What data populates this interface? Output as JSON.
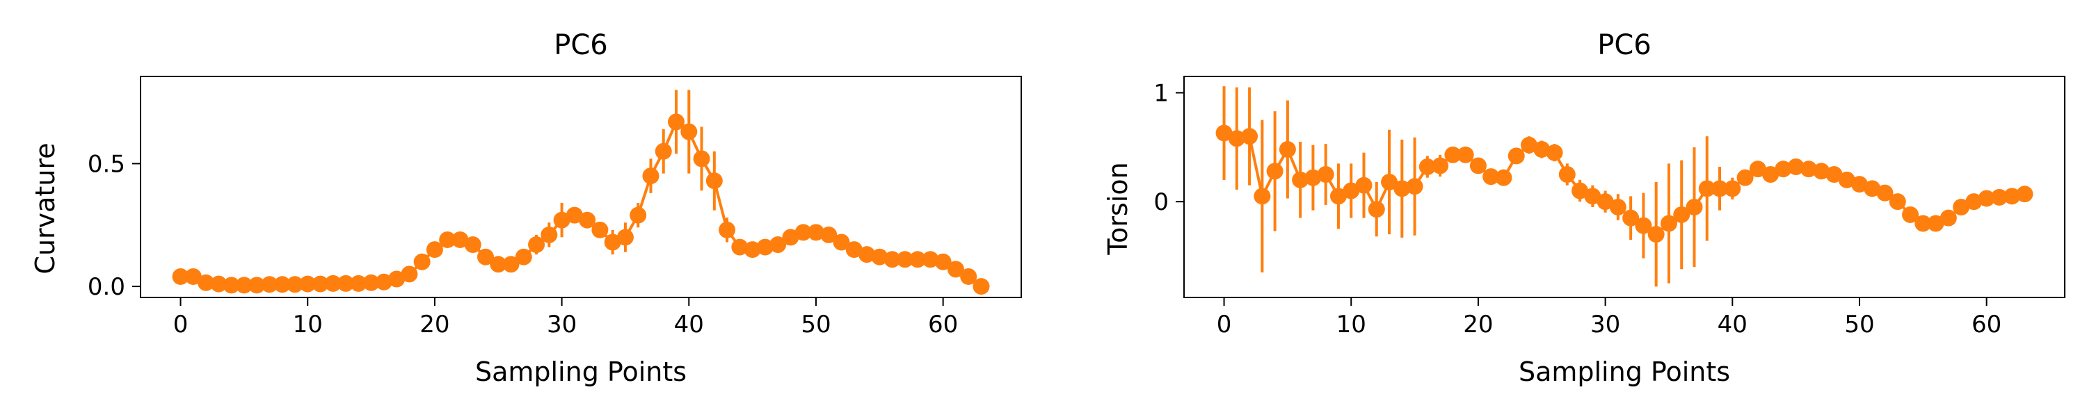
{
  "chart_data": [
    {
      "type": "line",
      "title": "PC6",
      "xlabel": "Sampling Points",
      "ylabel": "Curvature",
      "xlim": [
        -3.15,
        66.15
      ],
      "ylim": [
        -0.045,
        0.855
      ],
      "xticks": [
        0,
        10,
        20,
        30,
        40,
        50,
        60
      ],
      "xtick_labels": [
        "0",
        "10",
        "20",
        "30",
        "40",
        "50",
        "60"
      ],
      "yticks": [
        0.0,
        0.5
      ],
      "ytick_labels": [
        "0.0",
        "0.5"
      ],
      "grid": false,
      "legend": "none",
      "series": [
        {
          "color": "#ff7f0e",
          "x": [
            0,
            1,
            2,
            3,
            4,
            5,
            6,
            7,
            8,
            9,
            10,
            11,
            12,
            13,
            14,
            15,
            16,
            17,
            18,
            19,
            20,
            21,
            22,
            23,
            24,
            25,
            26,
            27,
            28,
            29,
            30,
            31,
            32,
            33,
            34,
            35,
            36,
            37,
            38,
            39,
            40,
            41,
            42,
            43,
            44,
            45,
            46,
            47,
            48,
            49,
            50,
            51,
            52,
            53,
            54,
            55,
            56,
            57,
            58,
            59,
            60,
            61,
            62,
            63
          ],
          "y": [
            0.04,
            0.04,
            0.015,
            0.01,
            0.005,
            0.005,
            0.005,
            0.008,
            0.008,
            0.008,
            0.01,
            0.01,
            0.012,
            0.012,
            0.012,
            0.015,
            0.018,
            0.03,
            0.05,
            0.1,
            0.15,
            0.19,
            0.19,
            0.17,
            0.12,
            0.09,
            0.09,
            0.12,
            0.17,
            0.21,
            0.27,
            0.29,
            0.27,
            0.23,
            0.18,
            0.2,
            0.29,
            0.45,
            0.55,
            0.67,
            0.63,
            0.52,
            0.43,
            0.23,
            0.16,
            0.15,
            0.16,
            0.17,
            0.2,
            0.22,
            0.22,
            0.21,
            0.18,
            0.15,
            0.13,
            0.12,
            0.11,
            0.11,
            0.11,
            0.11,
            0.1,
            0.07,
            0.04,
            0.0
          ],
          "err": [
            0.01,
            0.01,
            0.01,
            0.008,
            0.005,
            0.005,
            0.005,
            0.005,
            0.005,
            0.005,
            0.005,
            0.005,
            0.005,
            0.005,
            0.005,
            0.005,
            0.005,
            0.01,
            0.015,
            0.02,
            0.02,
            0.02,
            0.02,
            0.02,
            0.02,
            0.02,
            0.02,
            0.03,
            0.04,
            0.05,
            0.07,
            0.02,
            0.02,
            0.03,
            0.05,
            0.06,
            0.05,
            0.07,
            0.09,
            0.13,
            0.17,
            0.13,
            0.12,
            0.05,
            0.02,
            0.02,
            0.02,
            0.02,
            0.02,
            0.02,
            0.02,
            0.02,
            0.02,
            0.02,
            0.02,
            0.02,
            0.01,
            0.01,
            0.01,
            0.01,
            0.01,
            0.01,
            0.01,
            0.01
          ]
        }
      ]
    },
    {
      "type": "line",
      "title": "PC6",
      "xlabel": "Sampling Points",
      "ylabel": "Torsion",
      "xlim": [
        -3.15,
        66.15
      ],
      "ylim": [
        -0.88,
        1.15
      ],
      "xticks": [
        0,
        10,
        20,
        30,
        40,
        50,
        60
      ],
      "xtick_labels": [
        "0",
        "10",
        "20",
        "30",
        "40",
        "50",
        "60"
      ],
      "yticks": [
        0,
        1
      ],
      "ytick_labels": [
        "0",
        "1"
      ],
      "grid": false,
      "legend": "none",
      "series": [
        {
          "color": "#ff7f0e",
          "x": [
            0,
            1,
            2,
            3,
            4,
            5,
            6,
            7,
            8,
            9,
            10,
            11,
            12,
            13,
            14,
            15,
            16,
            17,
            18,
            19,
            20,
            21,
            22,
            23,
            24,
            25,
            26,
            27,
            28,
            29,
            30,
            31,
            32,
            33,
            34,
            35,
            36,
            37,
            38,
            39,
            40,
            41,
            42,
            43,
            44,
            45,
            46,
            47,
            48,
            49,
            50,
            51,
            52,
            53,
            54,
            55,
            56,
            57,
            58,
            59,
            60,
            61,
            62,
            63
          ],
          "y": [
            0.63,
            0.58,
            0.6,
            0.05,
            0.28,
            0.48,
            0.2,
            0.22,
            0.25,
            0.05,
            0.1,
            0.15,
            -0.07,
            0.18,
            0.12,
            0.14,
            0.32,
            0.33,
            0.43,
            0.43,
            0.33,
            0.23,
            0.22,
            0.42,
            0.52,
            0.48,
            0.45,
            0.25,
            0.1,
            0.05,
            0.0,
            -0.05,
            -0.15,
            -0.22,
            -0.3,
            -0.2,
            -0.12,
            -0.05,
            0.12,
            0.12,
            0.12,
            0.22,
            0.3,
            0.25,
            0.3,
            0.32,
            0.3,
            0.28,
            0.25,
            0.2,
            0.16,
            0.12,
            0.08,
            0.0,
            -0.12,
            -0.2,
            -0.2,
            -0.15,
            -0.05,
            0.0,
            0.03,
            0.04,
            0.05,
            0.07
          ],
          "err": [
            0.43,
            0.47,
            0.45,
            0.7,
            0.55,
            0.45,
            0.35,
            0.3,
            0.28,
            0.3,
            0.25,
            0.3,
            0.25,
            0.48,
            0.45,
            0.45,
            0.1,
            0.1,
            0.05,
            0.05,
            0.05,
            0.05,
            0.05,
            0.05,
            0.08,
            0.08,
            0.08,
            0.1,
            0.1,
            0.1,
            0.1,
            0.12,
            0.2,
            0.3,
            0.48,
            0.55,
            0.5,
            0.55,
            0.48,
            0.2,
            0.1,
            0.05,
            0.05,
            0.05,
            0.05,
            0.05,
            0.05,
            0.05,
            0.05,
            0.05,
            0.05,
            0.05,
            0.05,
            0.05,
            0.05,
            0.04,
            0.04,
            0.04,
            0.04,
            0.04,
            0.04,
            0.04,
            0.04,
            0.04
          ]
        }
      ]
    }
  ]
}
